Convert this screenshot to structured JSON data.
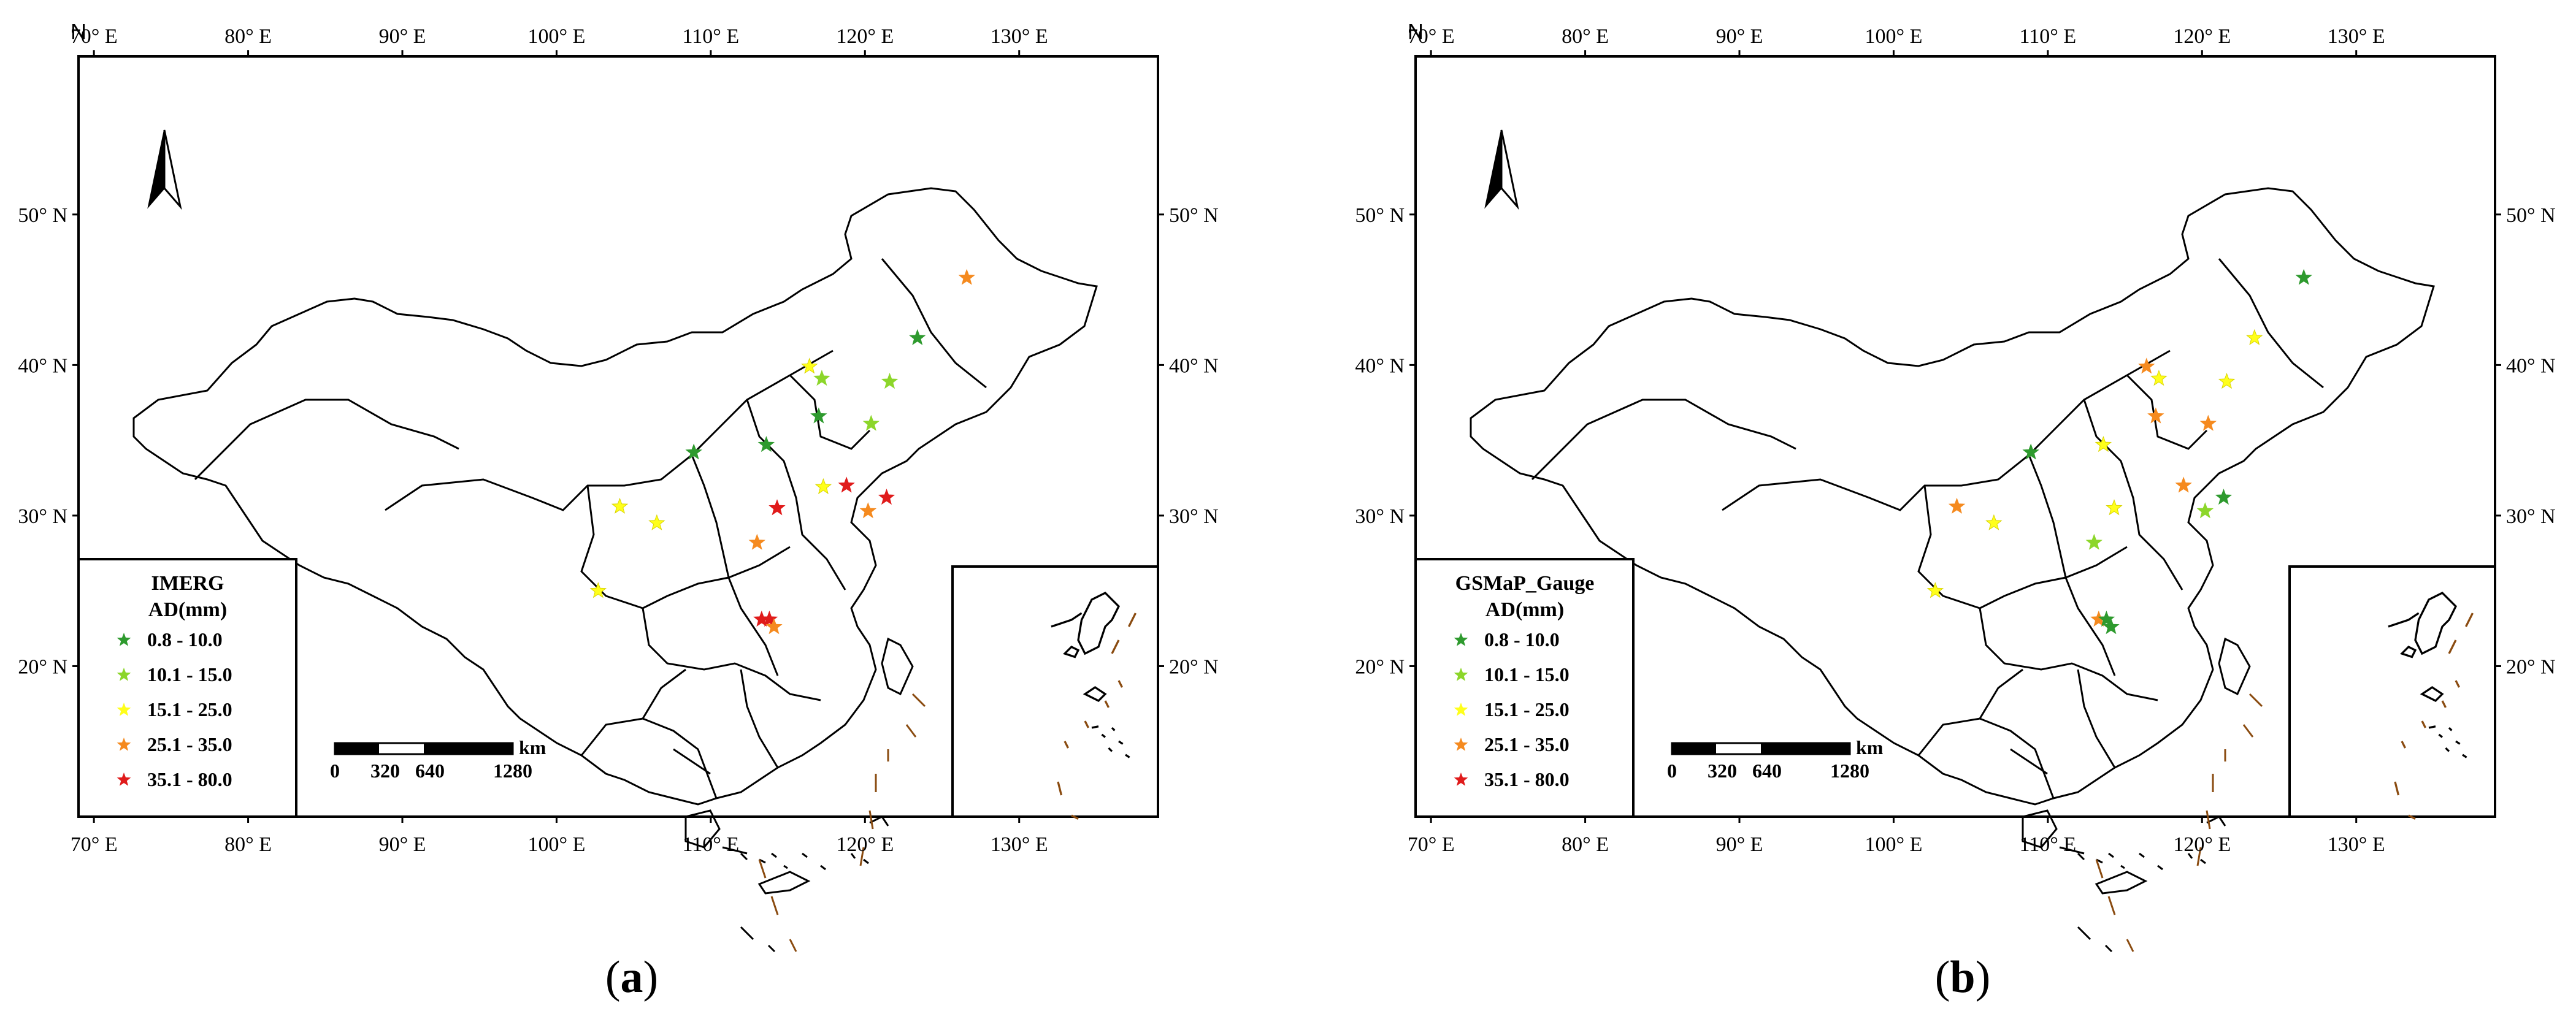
{
  "figure": {
    "lon_ticks": [
      "70° E",
      "80° E",
      "90° E",
      "100° E",
      "110° E",
      "120° E",
      "130° E"
    ],
    "lat_ticks": [
      "50° N",
      "40° N",
      "30° N",
      "20° N"
    ],
    "north_label": "N",
    "scale_bar": {
      "numbers": [
        "0",
        "320",
        "640",
        "1280"
      ],
      "unit": "km"
    },
    "legend_classes": [
      {
        "label": "0.8 - 10.0",
        "color": "#2e9a2e"
      },
      {
        "label": "10.1 - 15.0",
        "color": "#8cd62a"
      },
      {
        "label": "15.1 - 25.0",
        "color": "#ffff1a"
      },
      {
        "label": "25.1 - 35.0",
        "color": "#f58a1f"
      },
      {
        "label": "35.1 - 80.0",
        "color": "#e01b1b"
      }
    ]
  },
  "panels": [
    {
      "id": "a",
      "legend_title": "IMERG",
      "legend_subtitle": "AD(mm)",
      "caption_letter": "a",
      "stations": [
        {
          "lon": 126.6,
          "lat": 45.8,
          "cls": 3
        },
        {
          "lon": 123.4,
          "lat": 41.8,
          "cls": 0
        },
        {
          "lon": 116.4,
          "lat": 39.9,
          "cls": 2
        },
        {
          "lon": 117.2,
          "lat": 39.1,
          "cls": 1
        },
        {
          "lon": 121.6,
          "lat": 38.9,
          "cls": 1
        },
        {
          "lon": 117.0,
          "lat": 36.6,
          "cls": 0
        },
        {
          "lon": 120.4,
          "lat": 36.1,
          "cls": 1
        },
        {
          "lon": 113.6,
          "lat": 34.7,
          "cls": 0
        },
        {
          "lon": 108.9,
          "lat": 34.2,
          "cls": 0
        },
        {
          "lon": 117.3,
          "lat": 31.9,
          "cls": 2
        },
        {
          "lon": 118.8,
          "lat": 32.0,
          "cls": 4
        },
        {
          "lon": 121.4,
          "lat": 31.2,
          "cls": 4
        },
        {
          "lon": 114.3,
          "lat": 30.5,
          "cls": 4
        },
        {
          "lon": 120.2,
          "lat": 30.3,
          "cls": 3
        },
        {
          "lon": 104.1,
          "lat": 30.6,
          "cls": 2
        },
        {
          "lon": 106.5,
          "lat": 29.5,
          "cls": 2
        },
        {
          "lon": 113.0,
          "lat": 28.2,
          "cls": 3
        },
        {
          "lon": 102.7,
          "lat": 25.0,
          "cls": 2
        },
        {
          "lon": 113.3,
          "lat": 23.1,
          "cls": 4
        },
        {
          "lon": 113.8,
          "lat": 23.1,
          "cls": 4
        },
        {
          "lon": 114.1,
          "lat": 22.6,
          "cls": 3
        }
      ]
    },
    {
      "id": "b",
      "legend_title": "GSMaP_Gauge",
      "legend_subtitle": "AD(mm)",
      "caption_letter": "b",
      "stations": [
        {
          "lon": 126.6,
          "lat": 45.8,
          "cls": 0
        },
        {
          "lon": 123.4,
          "lat": 41.8,
          "cls": 2
        },
        {
          "lon": 116.4,
          "lat": 39.9,
          "cls": 3
        },
        {
          "lon": 117.2,
          "lat": 39.1,
          "cls": 2
        },
        {
          "lon": 121.6,
          "lat": 38.9,
          "cls": 2
        },
        {
          "lon": 117.0,
          "lat": 36.6,
          "cls": 3
        },
        {
          "lon": 120.4,
          "lat": 36.1,
          "cls": 3
        },
        {
          "lon": 113.6,
          "lat": 34.7,
          "cls": 2
        },
        {
          "lon": 108.9,
          "lat": 34.2,
          "cls": 0
        },
        {
          "lon": 118.8,
          "lat": 32.0,
          "cls": 3
        },
        {
          "lon": 121.4,
          "lat": 31.2,
          "cls": 0
        },
        {
          "lon": 120.2,
          "lat": 30.3,
          "cls": 1
        },
        {
          "lon": 114.3,
          "lat": 30.5,
          "cls": 2
        },
        {
          "lon": 104.1,
          "lat": 30.6,
          "cls": 3
        },
        {
          "lon": 106.5,
          "lat": 29.5,
          "cls": 2
        },
        {
          "lon": 113.0,
          "lat": 28.2,
          "cls": 1
        },
        {
          "lon": 102.7,
          "lat": 25.0,
          "cls": 2
        },
        {
          "lon": 113.3,
          "lat": 23.1,
          "cls": 3
        },
        {
          "lon": 113.8,
          "lat": 23.1,
          "cls": 0
        },
        {
          "lon": 114.1,
          "lat": 22.6,
          "cls": 0
        }
      ]
    }
  ]
}
